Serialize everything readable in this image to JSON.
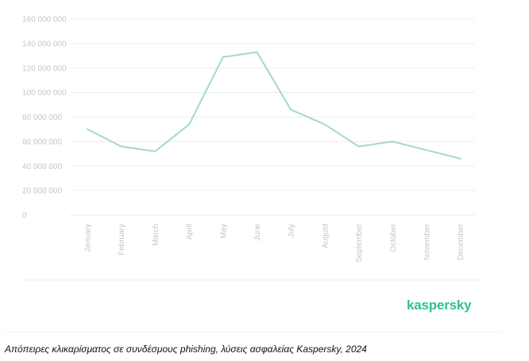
{
  "chart_data": {
    "type": "line",
    "categories": [
      "January",
      "February",
      "March",
      "April",
      "May",
      "June",
      "July",
      "August",
      "September",
      "October",
      "November",
      "December"
    ],
    "series": [
      {
        "values": [
          70000000,
          56000000,
          52000000,
          74000000,
          129000000,
          133000000,
          86000000,
          74000000,
          56000000,
          60000000,
          53000000,
          46000000
        ]
      }
    ],
    "y_ticks": [
      "0",
      "20 000 000",
      "40 000 000",
      "60 000 000",
      "80 000 000",
      "100 000 000",
      "120 000 000",
      "140 000 000",
      "160 000 000"
    ],
    "ylim": [
      0,
      160000000
    ],
    "grid": true,
    "colors": {
      "line": "#a7d9c2",
      "grid": "#ededed",
      "tick_text": "#c6c6c6"
    }
  },
  "brand": {
    "logo_text": "kaspersky",
    "color": "#2fbf97"
  },
  "caption": "Απόπειρες κλικαρίσματος σε συνδέσμους phishing, λύσεις ασφαλείας Kaspersky, 2024"
}
